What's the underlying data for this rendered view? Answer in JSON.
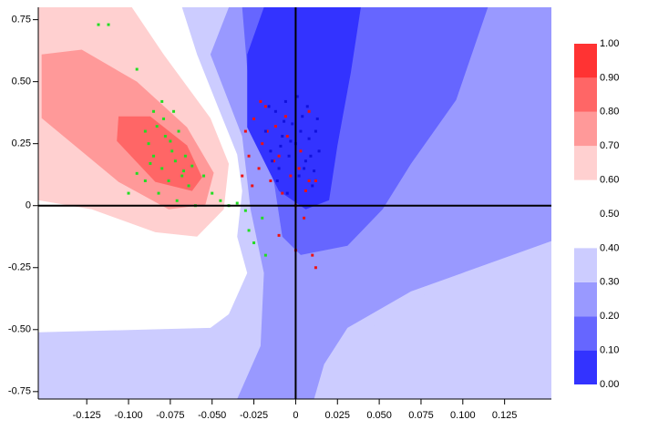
{
  "chart_data": {
    "type": "contour",
    "xlim": [
      -0.154,
      0.153
    ],
    "ylim": [
      -0.78,
      0.8
    ],
    "xticks": [
      -0.125,
      {
        "value": -0.1,
        "label": "-0.100"
      },
      -0.075,
      {
        "value": -0.05,
        "label": "-0.050"
      },
      -0.025,
      0,
      0.025,
      {
        "value": 0.05,
        "label": "0.050"
      },
      0.075,
      {
        "value": 0.1,
        "label": "0.100"
      },
      0.125
    ],
    "yticks": [
      -0.75,
      {
        "value": -0.5,
        "label": "-0.50"
      },
      -0.25,
      0,
      0.25,
      {
        "value": 0.5,
        "label": "0.50"
      },
      0.75
    ],
    "regions": [
      {
        "color": "#ccccff",
        "points": [
          [
            -0.154,
            0.8
          ],
          [
            0.153,
            0.8
          ],
          [
            0.153,
            -0.78
          ],
          [
            -0.154,
            -0.78
          ]
        ]
      },
      {
        "color": "#ffffff",
        "points": [
          [
            -0.154,
            -0.511
          ],
          [
            -0.154,
            0.8
          ],
          [
            -0.068,
            0.8
          ],
          [
            -0.059,
            0.61
          ],
          [
            -0.046,
            0.39
          ],
          [
            -0.035,
            0.206
          ],
          [
            -0.032,
            0.059
          ],
          [
            -0.035,
            -0.125
          ],
          [
            -0.029,
            -0.272
          ],
          [
            -0.04,
            -0.438
          ],
          [
            -0.051,
            -0.493
          ]
        ]
      },
      {
        "color": "#9999ff",
        "points": [
          [
            -0.04,
            0.8
          ],
          [
            0.153,
            0.8
          ],
          [
            0.153,
            -0.143
          ],
          [
            0.069,
            -0.346
          ],
          [
            0.031,
            -0.493
          ],
          [
            0.017,
            -0.64
          ],
          [
            0.011,
            -0.78
          ],
          [
            -0.035,
            -0.78
          ],
          [
            -0.021,
            -0.566
          ],
          [
            -0.019,
            -0.272
          ],
          [
            -0.027,
            -0.015
          ],
          [
            -0.032,
            0.279
          ],
          [
            -0.051,
            0.61
          ]
        ]
      },
      {
        "color": "#ccccff",
        "points": [
          [
            0.025,
            -0.78
          ],
          [
            0.036,
            -0.529
          ],
          [
            0.08,
            -0.346
          ],
          [
            0.153,
            -0.199
          ],
          [
            0.153,
            -0.78
          ]
        ]
      },
      {
        "color": "#6666ff",
        "points": [
          [
            -0.032,
            0.8
          ],
          [
            0.115,
            0.8
          ],
          [
            0.096,
            0.426
          ],
          [
            0.069,
            0.169
          ],
          [
            0.052,
            -0.015
          ],
          [
            0.031,
            -0.162
          ],
          [
            0.003,
            -0.199
          ],
          [
            -0.008,
            -0.125
          ],
          [
            -0.013,
            0.096
          ],
          [
            -0.027,
            0.39
          ]
        ]
      },
      {
        "color": "#3333ff",
        "points": [
          [
            -0.019,
            0.8
          ],
          [
            0.039,
            0.8
          ],
          [
            0.033,
            0.537
          ],
          [
            0.025,
            0.243
          ],
          [
            0.02,
            0.022
          ],
          [
            0.006,
            -0.015
          ],
          [
            -0.01,
            0.059
          ],
          [
            -0.029,
            0.316
          ],
          [
            -0.029,
            0.61
          ]
        ]
      },
      {
        "color": "#ffd0d0",
        "points": [
          [
            -0.154,
            0.8
          ],
          [
            -0.098,
            0.8
          ],
          [
            -0.079,
            0.61
          ],
          [
            -0.051,
            0.353
          ],
          [
            -0.04,
            0.169
          ],
          [
            -0.043,
            -0.015
          ],
          [
            -0.059,
            -0.125
          ],
          [
            -0.084,
            -0.107
          ],
          [
            -0.122,
            -0.015
          ],
          [
            -0.154,
            0.022
          ]
        ]
      },
      {
        "color": "#ff9999",
        "points": [
          [
            -0.152,
            0.61
          ],
          [
            -0.128,
            0.629
          ],
          [
            -0.095,
            0.5
          ],
          [
            -0.065,
            0.316
          ],
          [
            -0.049,
            0.132
          ],
          [
            -0.054,
            0.004
          ],
          [
            -0.076,
            -0.015
          ],
          [
            -0.106,
            0.096
          ],
          [
            -0.152,
            0.353
          ]
        ]
      },
      {
        "color": "#ff6666",
        "points": [
          [
            -0.106,
            0.36
          ],
          [
            -0.087,
            0.36
          ],
          [
            -0.065,
            0.243
          ],
          [
            -0.056,
            0.114
          ],
          [
            -0.062,
            0.059
          ],
          [
            -0.084,
            0.096
          ],
          [
            -0.107,
            0.261
          ]
        ]
      }
    ],
    "series": [
      {
        "color": "#22dd22",
        "x": [
          -0.118,
          -0.112,
          -0.095,
          -0.09,
          -0.088,
          -0.085,
          -0.083,
          -0.08,
          -0.078,
          -0.076,
          -0.074,
          -0.072,
          -0.07,
          -0.068,
          -0.066,
          -0.064,
          -0.09,
          -0.087,
          -0.082,
          -0.079,
          -0.075,
          -0.071,
          -0.067,
          -0.06,
          -0.055,
          -0.05,
          -0.045,
          -0.04,
          -0.035,
          -0.03,
          -0.028,
          -0.025,
          -0.02,
          -0.018,
          -0.1,
          -0.095,
          -0.085,
          -0.08,
          -0.073,
          -0.062
        ],
        "values": [
          0.73,
          0.73,
          0.55,
          0.3,
          0.25,
          0.2,
          0.32,
          0.15,
          0.28,
          0.1,
          0.22,
          0.18,
          0.3,
          0.12,
          0.2,
          0.08,
          0.1,
          0.17,
          0.05,
          0.35,
          0.26,
          0.02,
          0.14,
          0.0,
          0.12,
          0.05,
          0.02,
          0.0,
          0.01,
          -0.02,
          -0.1,
          -0.15,
          -0.05,
          -0.2,
          0.05,
          0.13,
          0.38,
          0.42,
          0.38,
          0.16
        ]
      },
      {
        "color": "#ee1111",
        "x": [
          -0.03,
          -0.028,
          -0.025,
          -0.022,
          -0.02,
          -0.018,
          -0.015,
          -0.012,
          -0.01,
          -0.008,
          -0.005,
          -0.003,
          0,
          0.003,
          0.005,
          0.008,
          0.01,
          0.012,
          -0.032,
          -0.026,
          -0.021,
          -0.017,
          -0.013,
          -0.006,
          0.002,
          0.006,
          -0.01,
          0,
          0.008,
          0.012
        ],
        "values": [
          0.3,
          0.2,
          0.35,
          0.15,
          0.25,
          0.4,
          0.1,
          0.32,
          0.2,
          0.05,
          0.28,
          0.12,
          0.0,
          0.22,
          -0.05,
          0.1,
          -0.2,
          -0.25,
          0.12,
          0.08,
          0.42,
          0.3,
          0.18,
          0.36,
          0.15,
          0.06,
          -0.12,
          -0.18,
          0.38,
          0.1
        ]
      },
      {
        "color": "#1111dd",
        "x": [
          -0.018,
          -0.015,
          -0.012,
          -0.01,
          -0.008,
          -0.006,
          -0.004,
          -0.002,
          0,
          0.002,
          0.004,
          0.006,
          0.008,
          0.01,
          0.012,
          0.014,
          -0.016,
          -0.011,
          -0.007,
          -0.003,
          0.001,
          0.005,
          0.009,
          0.013,
          -0.014,
          -0.005,
          0.003,
          0.007,
          -0.009,
          0.011
        ],
        "values": [
          0.3,
          0.22,
          0.38,
          0.15,
          0.28,
          0.42,
          0.2,
          0.33,
          0.25,
          0.12,
          0.36,
          0.18,
          0.27,
          0.08,
          0.3,
          0.22,
          0.4,
          0.1,
          0.34,
          0.26,
          0.44,
          0.15,
          0.2,
          0.35,
          0.18,
          0.05,
          0.3,
          0.4,
          0.24,
          0.14
        ]
      }
    ],
    "colorbar": {
      "lim": [
        0,
        1
      ],
      "ticks": [
        {
          "value": 0,
          "label": "0.00"
        },
        {
          "value": 0.1,
          "label": "0.10"
        },
        {
          "value": 0.2,
          "label": "0.20"
        },
        {
          "value": 0.3,
          "label": "0.30"
        },
        {
          "value": 0.4,
          "label": "0.40"
        },
        {
          "value": 0.5,
          "label": "0.50"
        },
        {
          "value": 0.6,
          "label": "0.60"
        },
        {
          "value": 0.7,
          "label": "0.70"
        },
        {
          "value": 0.8,
          "label": "0.80"
        },
        {
          "value": 0.9,
          "label": "0.90"
        },
        {
          "value": 1,
          "label": "1.00"
        }
      ],
      "bands": [
        {
          "range": [
            0,
            0.1
          ],
          "color": "#3333ff"
        },
        {
          "range": [
            0.1,
            0.2
          ],
          "color": "#6666ff"
        },
        {
          "range": [
            0.2,
            0.3
          ],
          "color": "#9999ff"
        },
        {
          "range": [
            0.3,
            0.4
          ],
          "color": "#ccccff"
        },
        {
          "range": [
            0.6,
            0.7
          ],
          "color": "#ffd0d0"
        },
        {
          "range": [
            0.7,
            0.8
          ],
          "color": "#ff9999"
        },
        {
          "range": [
            0.8,
            0.9
          ],
          "color": "#ff6666"
        },
        {
          "range": [
            0.9,
            1
          ],
          "color": "#ff3333"
        }
      ]
    }
  }
}
